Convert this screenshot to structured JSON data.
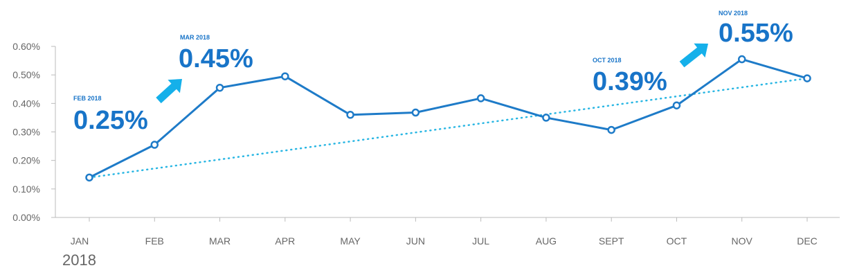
{
  "chart_data": {
    "type": "line",
    "categories": [
      "JAN",
      "FEB",
      "MAR",
      "APR",
      "MAY",
      "JUN",
      "JUL",
      "AUG",
      "SEPT",
      "OCT",
      "NOV",
      "DEC"
    ],
    "series": [
      {
        "values": [
          0.14,
          0.255,
          0.455,
          0.495,
          0.36,
          0.368,
          0.418,
          0.35,
          0.307,
          0.393,
          0.555,
          0.488
        ]
      }
    ],
    "trendline": {
      "style": "dotted",
      "from": 0.14,
      "to": 0.488
    },
    "y_ticks": [
      "0.00%",
      "0.10%",
      "0.20%",
      "0.30%",
      "0.40%",
      "0.50%",
      "0.60%"
    ],
    "ylim": [
      0,
      0.6
    ],
    "year_label": "2018",
    "grid": false,
    "annotations": [
      {
        "category": "FEB",
        "label": "FEB 2018",
        "value_text": "0.25%",
        "arrow": false
      },
      {
        "category": "MAR",
        "label": "MAR 2018",
        "value_text": "0.45%",
        "arrow": true
      },
      {
        "category": "OCT",
        "label": "OCT 2018",
        "value_text": "0.39%",
        "arrow": false
      },
      {
        "category": "NOV",
        "label": "NOV 2018",
        "value_text": "0.55%",
        "arrow": true
      }
    ],
    "colors": {
      "line": "#1e7bc8",
      "trend": "#29b6e3",
      "arrow": "#15b0ea",
      "annotation": "#1874c8",
      "axis": "#bbbbbb",
      "text": "#666666"
    }
  }
}
